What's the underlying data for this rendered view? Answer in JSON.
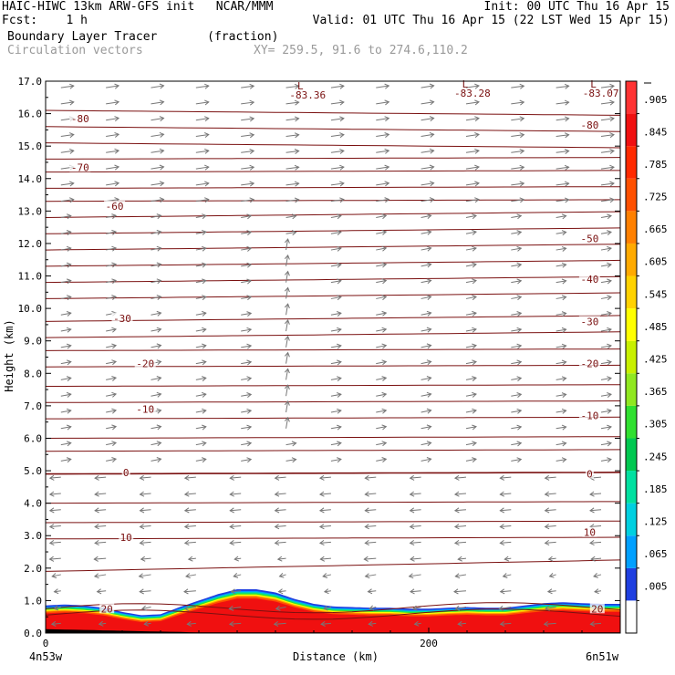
{
  "header": {
    "line1_left": "HAIC-HIWC 13km ARW-GFS init   NCAR/MMM",
    "line1_right": "Init: 00 UTC Thu 16 Apr 15",
    "line2_left": "Fcst:    1 h",
    "line2_right": "Valid: 01 UTC Thu 16 Apr 15 (22 LST Wed 15 Apr 15)",
    "line3_left": "Boundary Layer Tracer       (fraction)",
    "line4_left": "Circulation vectors",
    "line4_right": "XY= 259.5, 91.6 to 274.6,110.2"
  },
  "colors": {
    "contour": "#7a1010",
    "vector": "#777777",
    "gray_text": "#9a9a9a"
  },
  "chart_data": {
    "type": "heatmap",
    "title": "Boundary Layer Tracer",
    "units": "(fraction)",
    "xlabel": "Distance (km)",
    "ylabel": "Height (km)",
    "xlim": [
      0,
      300
    ],
    "ylim": [
      0,
      17
    ],
    "x_ticks": [
      0,
      200
    ],
    "x_tick_labels": [
      "0",
      "200"
    ],
    "x_end_labels": {
      "left": "4n53w",
      "right": "6n51w"
    },
    "y_ticks": [
      0.0,
      1.0,
      2.0,
      3.0,
      4.0,
      5.0,
      6.0,
      7.0,
      8.0,
      9.0,
      10.0,
      11.0,
      12.0,
      13.0,
      14.0,
      15.0,
      16.0,
      17.0
    ],
    "y_tick_labels": [
      "0.0",
      "1.0",
      "2.0",
      "3.0",
      "4.0",
      "5.0",
      "6.0",
      "7.0",
      "8.0",
      "9.0",
      "10.0",
      "11.0",
      "12.0",
      "13.0",
      "14.0",
      "15.0",
      "16.0",
      "17.0"
    ],
    "colorbar": {
      "labels": [
        ".005",
        ".065",
        ".125",
        ".185",
        ".245",
        ".305",
        ".365",
        ".425",
        ".485",
        ".545",
        ".605",
        ".665",
        ".725",
        ".785",
        ".845",
        ".905"
      ],
      "colors": [
        "#ffffff",
        "#1f3fe0",
        "#00a0ff",
        "#00d0e0",
        "#00e0a0",
        "#00c850",
        "#30e030",
        "#90e820",
        "#c8f000",
        "#ffff00",
        "#ffd200",
        "#ffaa00",
        "#ff8000",
        "#ff5000",
        "#ff2a00",
        "#f01010",
        "#ff3333"
      ]
    },
    "tracer_top_km": [
      [
        0,
        0.85
      ],
      [
        10,
        0.88
      ],
      [
        20,
        0.85
      ],
      [
        30,
        0.78
      ],
      [
        40,
        0.65
      ],
      [
        50,
        0.55
      ],
      [
        60,
        0.58
      ],
      [
        70,
        0.8
      ],
      [
        80,
        1.0
      ],
      [
        90,
        1.2
      ],
      [
        100,
        1.35
      ],
      [
        110,
        1.35
      ],
      [
        120,
        1.25
      ],
      [
        130,
        1.05
      ],
      [
        140,
        0.9
      ],
      [
        150,
        0.82
      ],
      [
        160,
        0.8
      ],
      [
        170,
        0.78
      ],
      [
        180,
        0.78
      ],
      [
        190,
        0.75
      ],
      [
        200,
        0.75
      ],
      [
        210,
        0.78
      ],
      [
        220,
        0.8
      ],
      [
        230,
        0.78
      ],
      [
        240,
        0.78
      ],
      [
        250,
        0.85
      ],
      [
        260,
        0.92
      ],
      [
        270,
        0.95
      ],
      [
        280,
        0.92
      ],
      [
        290,
        0.9
      ],
      [
        300,
        0.9
      ]
    ],
    "contour_labels": [
      {
        "text": "-80",
        "x": 18,
        "y": 15.85
      },
      {
        "text": "-80",
        "x": 284,
        "y": 15.65
      },
      {
        "text": "-70",
        "x": 18,
        "y": 14.35
      },
      {
        "text": "-60",
        "x": 36,
        "y": 13.15
      },
      {
        "text": "-50",
        "x": 284,
        "y": 12.15
      },
      {
        "text": "-40",
        "x": 284,
        "y": 10.9
      },
      {
        "text": "-30",
        "x": 40,
        "y": 9.7
      },
      {
        "text": "-30",
        "x": 284,
        "y": 9.6
      },
      {
        "text": "-20",
        "x": 52,
        "y": 8.3
      },
      {
        "text": "-20",
        "x": 284,
        "y": 8.3
      },
      {
        "text": "-10",
        "x": 52,
        "y": 6.9
      },
      {
        "text": "-10",
        "x": 284,
        "y": 6.7
      },
      {
        "text": "0",
        "x": 42,
        "y": 4.95
      },
      {
        "text": "0",
        "x": 284,
        "y": 4.9
      },
      {
        "text": "10",
        "x": 42,
        "y": 2.95
      },
      {
        "text": "10",
        "x": 284,
        "y": 3.1
      },
      {
        "text": "20",
        "x": 32,
        "y": 0.75
      },
      {
        "text": "20",
        "x": 288,
        "y": 0.75
      }
    ],
    "lows": [
      {
        "text": "L",
        "value": "-83.36",
        "x": 133,
        "y": 16.75
      },
      {
        "text": "L",
        "value": "-83.28",
        "x": 219,
        "y": 16.8
      },
      {
        "text": "L",
        "value": "-83.07",
        "x": 286,
        "y": 16.8
      }
    ]
  }
}
